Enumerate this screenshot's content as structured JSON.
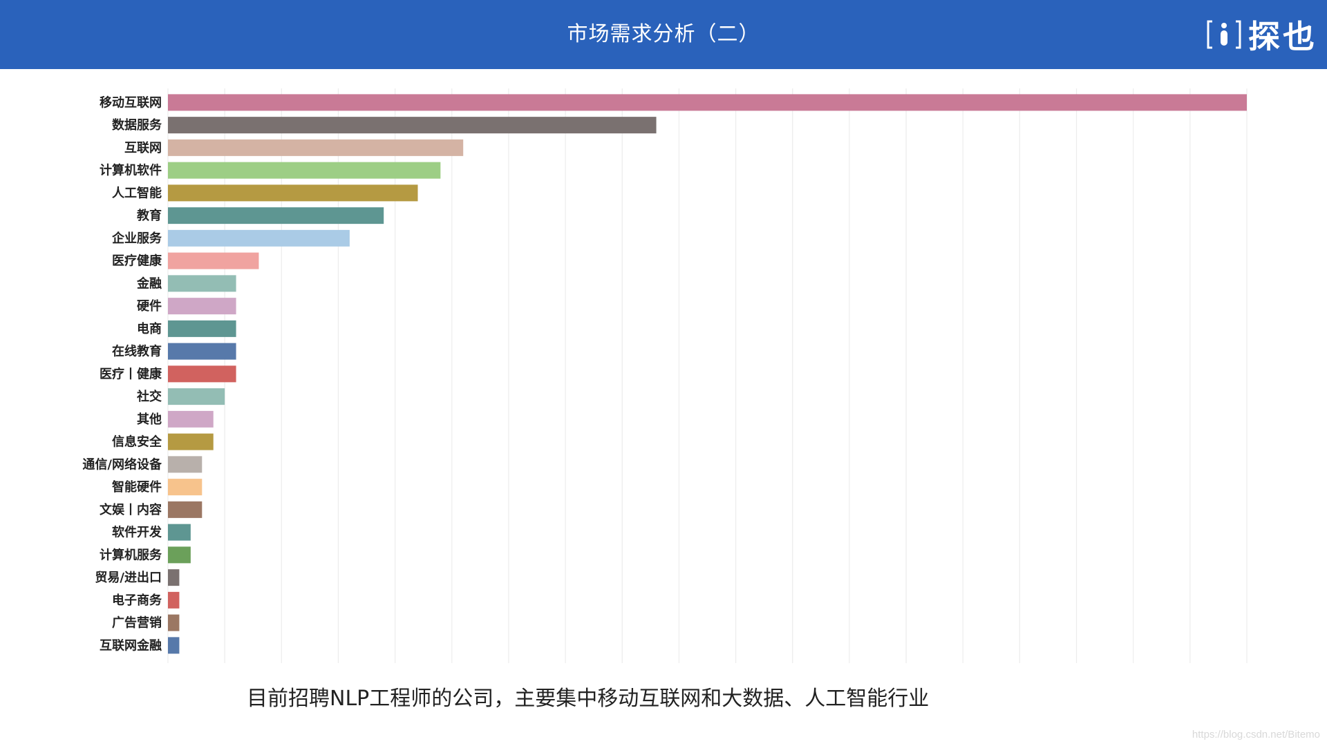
{
  "header": {
    "title": "市场需求分析（二）",
    "logo_text": "探也",
    "background": "#2a62bb"
  },
  "caption": "目前招聘NLP工程师的公司，主要集中移动互联网和大数据、人工智能行业",
  "watermark": "https://blog.csdn.net/Bitemo",
  "chart_data": {
    "type": "bar",
    "orientation": "horizontal",
    "grid": true,
    "categories": [
      "移动互联网",
      "数据服务",
      "互联网",
      "计算机软件",
      "人工智能",
      "教育",
      "企业服务",
      "医疗健康",
      "金融",
      "硬件",
      "电商",
      "在线教育",
      "医疗丨健康",
      "社交",
      "其他",
      "信息安全",
      "通信/网络设备",
      "智能硬件",
      "文娱丨内容",
      "软件开发",
      "计算机服务",
      "贸易/进出口",
      "电子商务",
      "广告营销",
      "互联网金融"
    ],
    "values": [
      95,
      43,
      26,
      24,
      22,
      19,
      16,
      8,
      6,
      6,
      6,
      6,
      6,
      5,
      4,
      4,
      3,
      3,
      3,
      2,
      2,
      1,
      1,
      1,
      1
    ],
    "colors": [
      "#c97a96",
      "#7a7170",
      "#d4b3a4",
      "#9dce85",
      "#b59a42",
      "#5e9692",
      "#aacbe6",
      "#f0a3a0",
      "#93bdb4",
      "#cfa7c6",
      "#5e9692",
      "#5779aa",
      "#d1625f",
      "#93bdb4",
      "#cfa7c6",
      "#b59a42",
      "#b8b0ab",
      "#f7c38c",
      "#9b7763",
      "#5e9692",
      "#6ba05a",
      "#7a7170",
      "#d1625f",
      "#9b7763",
      "#5779aa"
    ],
    "xlim": [
      0,
      95
    ],
    "grid_step": 5,
    "title": "",
    "xlabel": "",
    "ylabel": ""
  }
}
